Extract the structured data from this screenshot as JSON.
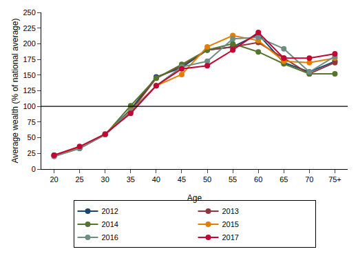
{
  "chart_data": {
    "type": "line",
    "x_label": "Age",
    "y_label": "Average wealth (% of national average)",
    "categories": [
      "20",
      "25",
      "30",
      "35",
      "40",
      "45",
      "50",
      "55",
      "60",
      "65",
      "70",
      "75+"
    ],
    "series": [
      {
        "name": "2012",
        "color": "#1a476f",
        "values": [
          21,
          33,
          55,
          95,
          147,
          162,
          190,
          195,
          215,
          170,
          155,
          172
        ]
      },
      {
        "name": "2013",
        "color": "#90353b",
        "values": [
          22,
          35,
          55,
          92,
          145,
          165,
          190,
          195,
          202,
          177,
          152,
          170
        ]
      },
      {
        "name": "2014",
        "color": "#55752f",
        "values": [
          22,
          34,
          55,
          101,
          145,
          167,
          190,
          200,
          187,
          168,
          152,
          152
        ]
      },
      {
        "name": "2015",
        "color": "#e37e00",
        "values": [
          21,
          34,
          55,
          93,
          133,
          151,
          195,
          213,
          205,
          172,
          170,
          177
        ]
      },
      {
        "name": "2016",
        "color": "#6e8e84",
        "values": [
          20,
          33,
          55,
          92,
          133,
          163,
          172,
          208,
          210,
          192,
          155,
          180
        ]
      },
      {
        "name": "2017",
        "color": "#c10534",
        "values": [
          22,
          36,
          56,
          89,
          133,
          160,
          165,
          190,
          218,
          177,
          177,
          184
        ]
      }
    ],
    "reference_line": 100,
    "ylim": [
      0,
      250
    ],
    "yticks": [
      0,
      25,
      50,
      75,
      100,
      125,
      150,
      175,
      200,
      225,
      250
    ],
    "grid": false,
    "legend": "bottom",
    "marker": "circle",
    "line_style": "solid"
  }
}
